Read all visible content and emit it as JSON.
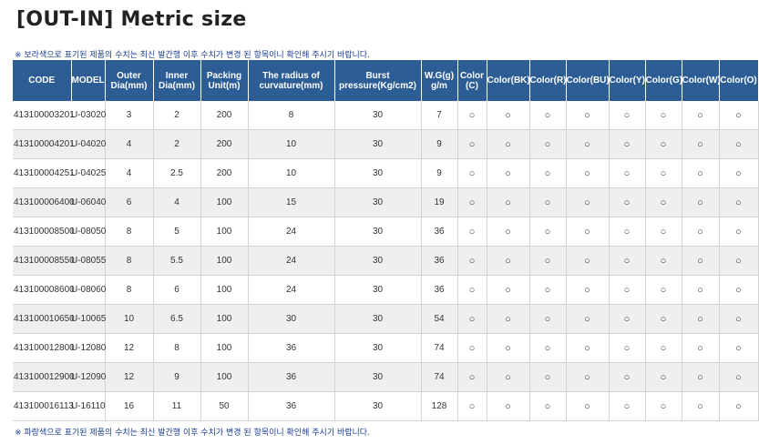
{
  "title": "[OUT-IN] Metric size",
  "note_top": "※ 보라색으로 표기된 제품의 수치는 최신 발간행 이후 수치가 변경 된 항목이니 확인해 주시기 바랍니다.",
  "note_bottom": "※ 파랑색으로 표기된 제품의 수치는 최신 발간행 이후 수치가 변경 된 항목이니 확인해 주시기 바랍니다.",
  "table": {
    "headers": [
      [
        "CODE"
      ],
      [
        "MODEL"
      ],
      [
        "Outer",
        "Dia(mm)"
      ],
      [
        "Inner",
        "Dia(mm)"
      ],
      [
        "Packing",
        "Unit(m)"
      ],
      [
        "The radius of",
        "curvature(mm)"
      ],
      [
        "Burst",
        "pressure(Kg/cm2)"
      ],
      [
        "W.G(g)",
        "g/m"
      ],
      [
        "Color",
        "(C)"
      ],
      [
        "Color(BK)"
      ],
      [
        "Color(R)"
      ],
      [
        "Color(BU)"
      ],
      [
        "Color(Y)"
      ],
      [
        "Color(G)"
      ],
      [
        "Color(W)"
      ],
      [
        "Color(O)"
      ]
    ],
    "rows": [
      [
        "413100003201",
        "U-03020",
        "3",
        "2",
        "200",
        "8",
        "30",
        "7",
        "○",
        "○",
        "○",
        "○",
        "○",
        "○",
        "○",
        "○"
      ],
      [
        "413100004201",
        "U-04020",
        "4",
        "2",
        "200",
        "10",
        "30",
        "9",
        "○",
        "○",
        "○",
        "○",
        "○",
        "○",
        "○",
        "○"
      ],
      [
        "413100004251",
        "U-04025",
        "4",
        "2.5",
        "200",
        "10",
        "30",
        "9",
        "○",
        "○",
        "○",
        "○",
        "○",
        "○",
        "○",
        "○"
      ],
      [
        "413100006400",
        "U-06040",
        "6",
        "4",
        "100",
        "15",
        "30",
        "19",
        "○",
        "○",
        "○",
        "○",
        "○",
        "○",
        "○",
        "○"
      ],
      [
        "413100008500",
        "U-08050",
        "8",
        "5",
        "100",
        "24",
        "30",
        "36",
        "○",
        "○",
        "○",
        "○",
        "○",
        "○",
        "○",
        "○"
      ],
      [
        "413100008550",
        "U-08055",
        "8",
        "5.5",
        "100",
        "24",
        "30",
        "36",
        "○",
        "○",
        "○",
        "○",
        "○",
        "○",
        "○",
        "○"
      ],
      [
        "413100008600",
        "U-08060",
        "8",
        "6",
        "100",
        "24",
        "30",
        "36",
        "○",
        "○",
        "○",
        "○",
        "○",
        "○",
        "○",
        "○"
      ],
      [
        "413100010650",
        "U-10065",
        "10",
        "6.5",
        "100",
        "30",
        "30",
        "54",
        "○",
        "○",
        "○",
        "○",
        "○",
        "○",
        "○",
        "○"
      ],
      [
        "413100012800",
        "U-12080",
        "12",
        "8",
        "100",
        "36",
        "30",
        "74",
        "○",
        "○",
        "○",
        "○",
        "○",
        "○",
        "○",
        "○"
      ],
      [
        "413100012900",
        "U-12090",
        "12",
        "9",
        "100",
        "36",
        "30",
        "74",
        "○",
        "○",
        "○",
        "○",
        "○",
        "○",
        "○",
        "○"
      ],
      [
        "413100016113",
        "U-16110",
        "16",
        "11",
        "50",
        "36",
        "30",
        "128",
        "○",
        "○",
        "○",
        "○",
        "○",
        "○",
        "○",
        "○"
      ]
    ]
  },
  "colors": {
    "header_bg": "#2d5d95",
    "row_alt_bg": "#efefef",
    "note_text": "#1a3d8f"
  }
}
